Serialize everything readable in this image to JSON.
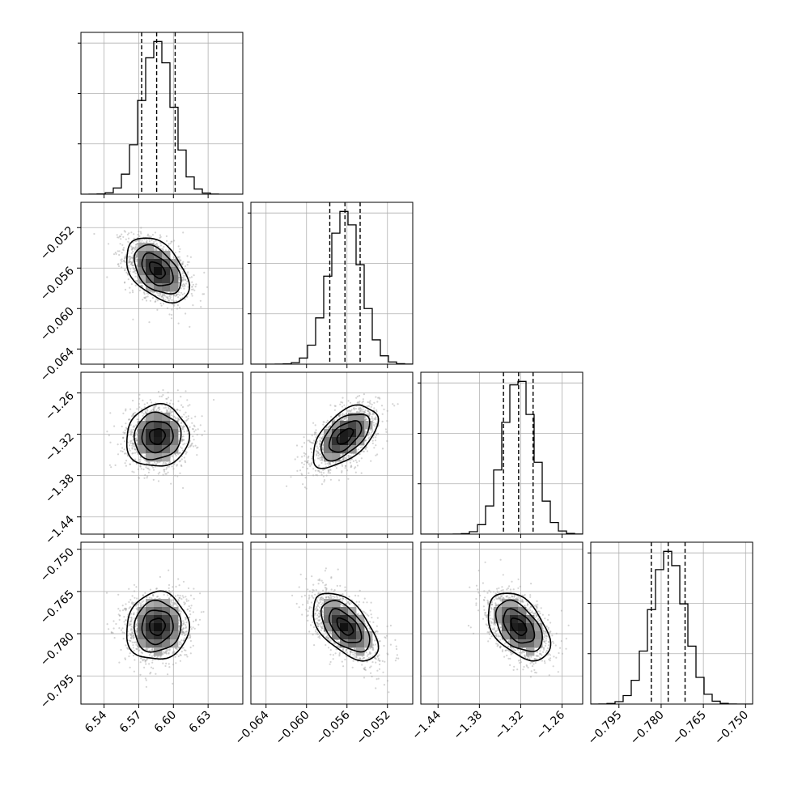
{
  "chart_data": {
    "type": "corner",
    "parameters": [
      {
        "range": [
          6.52,
          6.66
        ],
        "ticks": [
          6.54,
          6.57,
          6.6,
          6.63
        ],
        "tick_labels": [
          "6.54",
          "6.57",
          "6.60",
          "6.63"
        ],
        "mean": 6.586,
        "std": 0.0135,
        "quantiles": [
          6.5725,
          6.5855,
          6.6015
        ]
      },
      {
        "range": [
          -0.0655,
          -0.0495
        ],
        "ticks": [
          -0.064,
          -0.06,
          -0.056,
          -0.052
        ],
        "tick_labels": [
          "−0.064",
          "−0.060",
          "−0.056",
          "−0.052"
        ],
        "mean": -0.0562,
        "std": 0.0016,
        "quantiles": [
          -0.0577,
          -0.0562,
          -0.0547
        ]
      },
      {
        "range": [
          -1.465,
          -1.23
        ],
        "ticks": [
          -1.44,
          -1.38,
          -1.32,
          -1.26
        ],
        "tick_labels": [
          "−1.44",
          "−1.38",
          "−1.32",
          "−1.26"
        ],
        "mean": -1.323,
        "std": 0.0225,
        "quantiles": [
          -1.345,
          -1.323,
          -1.302
        ]
      },
      {
        "range": [
          -0.805,
          -0.7475
        ],
        "ticks": [
          -0.795,
          -0.78,
          -0.765,
          -0.75
        ],
        "tick_labels": [
          "−0.795",
          "−0.780",
          "−0.765",
          "−0.750"
        ],
        "mean": -0.7775,
        "std": 0.006,
        "quantiles": [
          -0.7835,
          -0.7775,
          -0.7715
        ]
      }
    ],
    "correlations": [
      [
        1.0,
        -0.45,
        0.05,
        0.05
      ],
      [
        -0.45,
        1.0,
        0.55,
        -0.55
      ],
      [
        0.05,
        0.55,
        1.0,
        -0.45
      ],
      [
        0.05,
        -0.55,
        -0.45,
        1.0
      ]
    ],
    "contour_levels_sigma": [
      0.5,
      1.0,
      1.5,
      2.0
    ],
    "histogram_bins": 20,
    "samples_per_panel": 1500,
    "grid": true
  }
}
